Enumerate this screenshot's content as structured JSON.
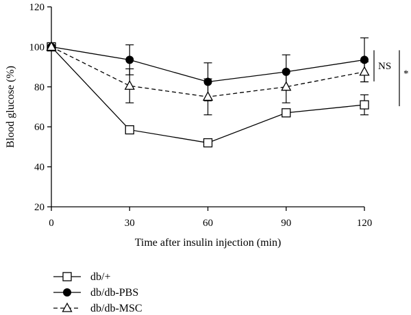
{
  "chart_data": {
    "type": "line",
    "xlabel": "Time after insulin injection (min)",
    "ylabel": "Blood glucose (%)",
    "xlim": [
      0,
      120
    ],
    "ylim": [
      20,
      120
    ],
    "xticks": [
      0,
      30,
      60,
      90,
      120
    ],
    "yticks": [
      20,
      40,
      60,
      80,
      100,
      120
    ],
    "grid": false,
    "legend_position": "bottom-left",
    "series": [
      {
        "name": "db/+",
        "marker": "open-square",
        "line": "solid",
        "x": [
          0,
          30,
          60,
          90,
          120
        ],
        "y": [
          100,
          58.5,
          52,
          67,
          71
        ],
        "err": [
          0,
          0,
          0,
          0,
          5
        ]
      },
      {
        "name": "db/db-PBS",
        "marker": "filled-circle",
        "line": "solid",
        "x": [
          0,
          30,
          60,
          90,
          120
        ],
        "y": [
          100,
          93.5,
          82.5,
          87.5,
          93.5
        ],
        "err": [
          0,
          7.5,
          9.5,
          8.5,
          11
        ]
      },
      {
        "name": "db/db-MSC",
        "marker": "open-triangle",
        "line": "dashed",
        "x": [
          0,
          30,
          60,
          90,
          120
        ],
        "y": [
          100,
          80.5,
          75,
          80,
          87.5
        ],
        "err": [
          0,
          8.5,
          9,
          8,
          5
        ]
      }
    ],
    "annotations": [
      {
        "text": "NS"
      },
      {
        "text": "*"
      }
    ]
  }
}
